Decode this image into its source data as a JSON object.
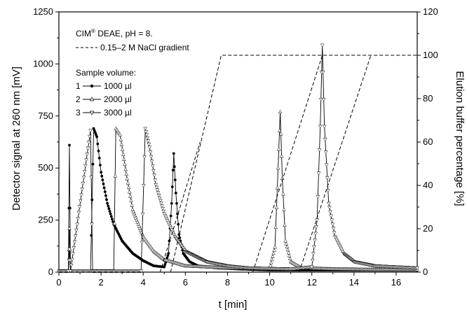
{
  "chart_data": {
    "type": "line",
    "xlabel": "t [min]",
    "ylabel": "Detector signal at 260 nm [mV]",
    "y2label": "Elution buffer percentage [%]",
    "xlim": [
      0,
      17
    ],
    "ylim": [
      0,
      1250
    ],
    "y2lim": [
      0,
      120
    ],
    "x_ticks": [
      0,
      2,
      4,
      6,
      8,
      10,
      12,
      14,
      16
    ],
    "y_ticks": [
      0,
      250,
      500,
      750,
      1000,
      1250
    ],
    "y2_ticks": [
      0,
      20,
      40,
      60,
      80,
      100,
      120
    ],
    "grid": false,
    "annotations": {
      "column_prefix": "CIM",
      "column_sup": "®",
      "column_suffix": " DEAE, pH = 8.",
      "gradient": "0.15–2 M NaCl gradient",
      "sample_volume_title": "Sample volume:",
      "sample_1": "1000 µl",
      "sample_2": "2000 µl",
      "sample_3": "3000 µl",
      "sample_1_num": "1",
      "sample_2_num": "2",
      "sample_3_num": "3"
    },
    "series": [
      {
        "name": "1000 µl",
        "marker": "filled-circle",
        "points": [
          [
            0,
            5
          ],
          [
            0.45,
            5
          ],
          [
            0.5,
            610
          ],
          [
            0.55,
            5
          ],
          [
            1.5,
            5
          ],
          [
            1.65,
            690
          ],
          [
            1.8,
            650
          ],
          [
            2.0,
            480
          ],
          [
            2.3,
            330
          ],
          [
            2.6,
            230
          ],
          [
            3.0,
            150
          ],
          [
            3.5,
            90
          ],
          [
            4.0,
            55
          ],
          [
            4.5,
            30
          ],
          [
            5.0,
            25
          ],
          [
            5.2,
            90
          ],
          [
            5.35,
            330
          ],
          [
            5.45,
            570
          ],
          [
            5.55,
            380
          ],
          [
            5.7,
            180
          ],
          [
            5.9,
            90
          ],
          [
            6.2,
            50
          ],
          [
            6.6,
            30
          ],
          [
            7.5,
            20
          ],
          [
            8.5,
            15
          ],
          [
            10,
            10
          ],
          [
            11,
            10
          ],
          [
            13,
            10
          ],
          [
            15,
            10
          ],
          [
            17,
            10
          ]
        ]
      },
      {
        "name": "2000 µl",
        "marker": "open-triangle-up",
        "points": [
          [
            0,
            5
          ],
          [
            0.45,
            5
          ],
          [
            0.5,
            210
          ],
          [
            0.55,
            5
          ],
          [
            1.5,
            5
          ],
          [
            2.6,
            5
          ],
          [
            2.7,
            690
          ],
          [
            2.9,
            660
          ],
          [
            3.2,
            470
          ],
          [
            3.5,
            300
          ],
          [
            4.0,
            170
          ],
          [
            4.5,
            100
          ],
          [
            5.0,
            60
          ],
          [
            6.0,
            30
          ],
          [
            8,
            20
          ],
          [
            10,
            15
          ],
          [
            10.25,
            120
          ],
          [
            10.4,
            500
          ],
          [
            10.5,
            770
          ],
          [
            10.6,
            450
          ],
          [
            10.75,
            150
          ],
          [
            11,
            50
          ],
          [
            11.5,
            20
          ],
          [
            13,
            15
          ],
          [
            15,
            12
          ],
          [
            17,
            12
          ]
        ]
      },
      {
        "name": "3000 µl",
        "marker": "open-triangle-down",
        "points": [
          [
            0,
            5
          ],
          [
            0.45,
            5
          ],
          [
            0.5,
            110
          ],
          [
            0.55,
            5
          ],
          [
            1.5,
            680
          ],
          [
            1.6,
            5
          ],
          [
            2,
            5
          ],
          [
            3.9,
            5
          ],
          [
            4.1,
            690
          ],
          [
            4.3,
            600
          ],
          [
            4.6,
            420
          ],
          [
            5.0,
            280
          ],
          [
            5.5,
            170
          ],
          [
            6.0,
            100
          ],
          [
            7,
            50
          ],
          [
            8,
            30
          ],
          [
            9,
            20
          ],
          [
            11,
            15
          ],
          [
            12,
            25
          ],
          [
            12.25,
            250
          ],
          [
            12.4,
            700
          ],
          [
            12.5,
            1090
          ],
          [
            12.6,
            700
          ],
          [
            12.8,
            330
          ],
          [
            13.1,
            170
          ],
          [
            13.5,
            90
          ],
          [
            14,
            50
          ],
          [
            15,
            30
          ],
          [
            17,
            20
          ]
        ]
      },
      {
        "name": "0.15–2 M NaCl gradient",
        "axis": "y2",
        "style": "dashed",
        "segments": [
          [
            [
              0,
              0
            ],
            [
              4.8,
              0
            ],
            [
              6.7,
              60
            ]
          ],
          [
            [
              5.3,
              0
            ],
            [
              7.7,
              100
            ],
            [
              17,
              100
            ]
          ],
          [
            [
              9.2,
              0
            ],
            [
              12.5,
              100
            ]
          ],
          [
            [
              11.4,
              0
            ],
            [
              14.8,
              100
            ]
          ]
        ]
      }
    ]
  }
}
